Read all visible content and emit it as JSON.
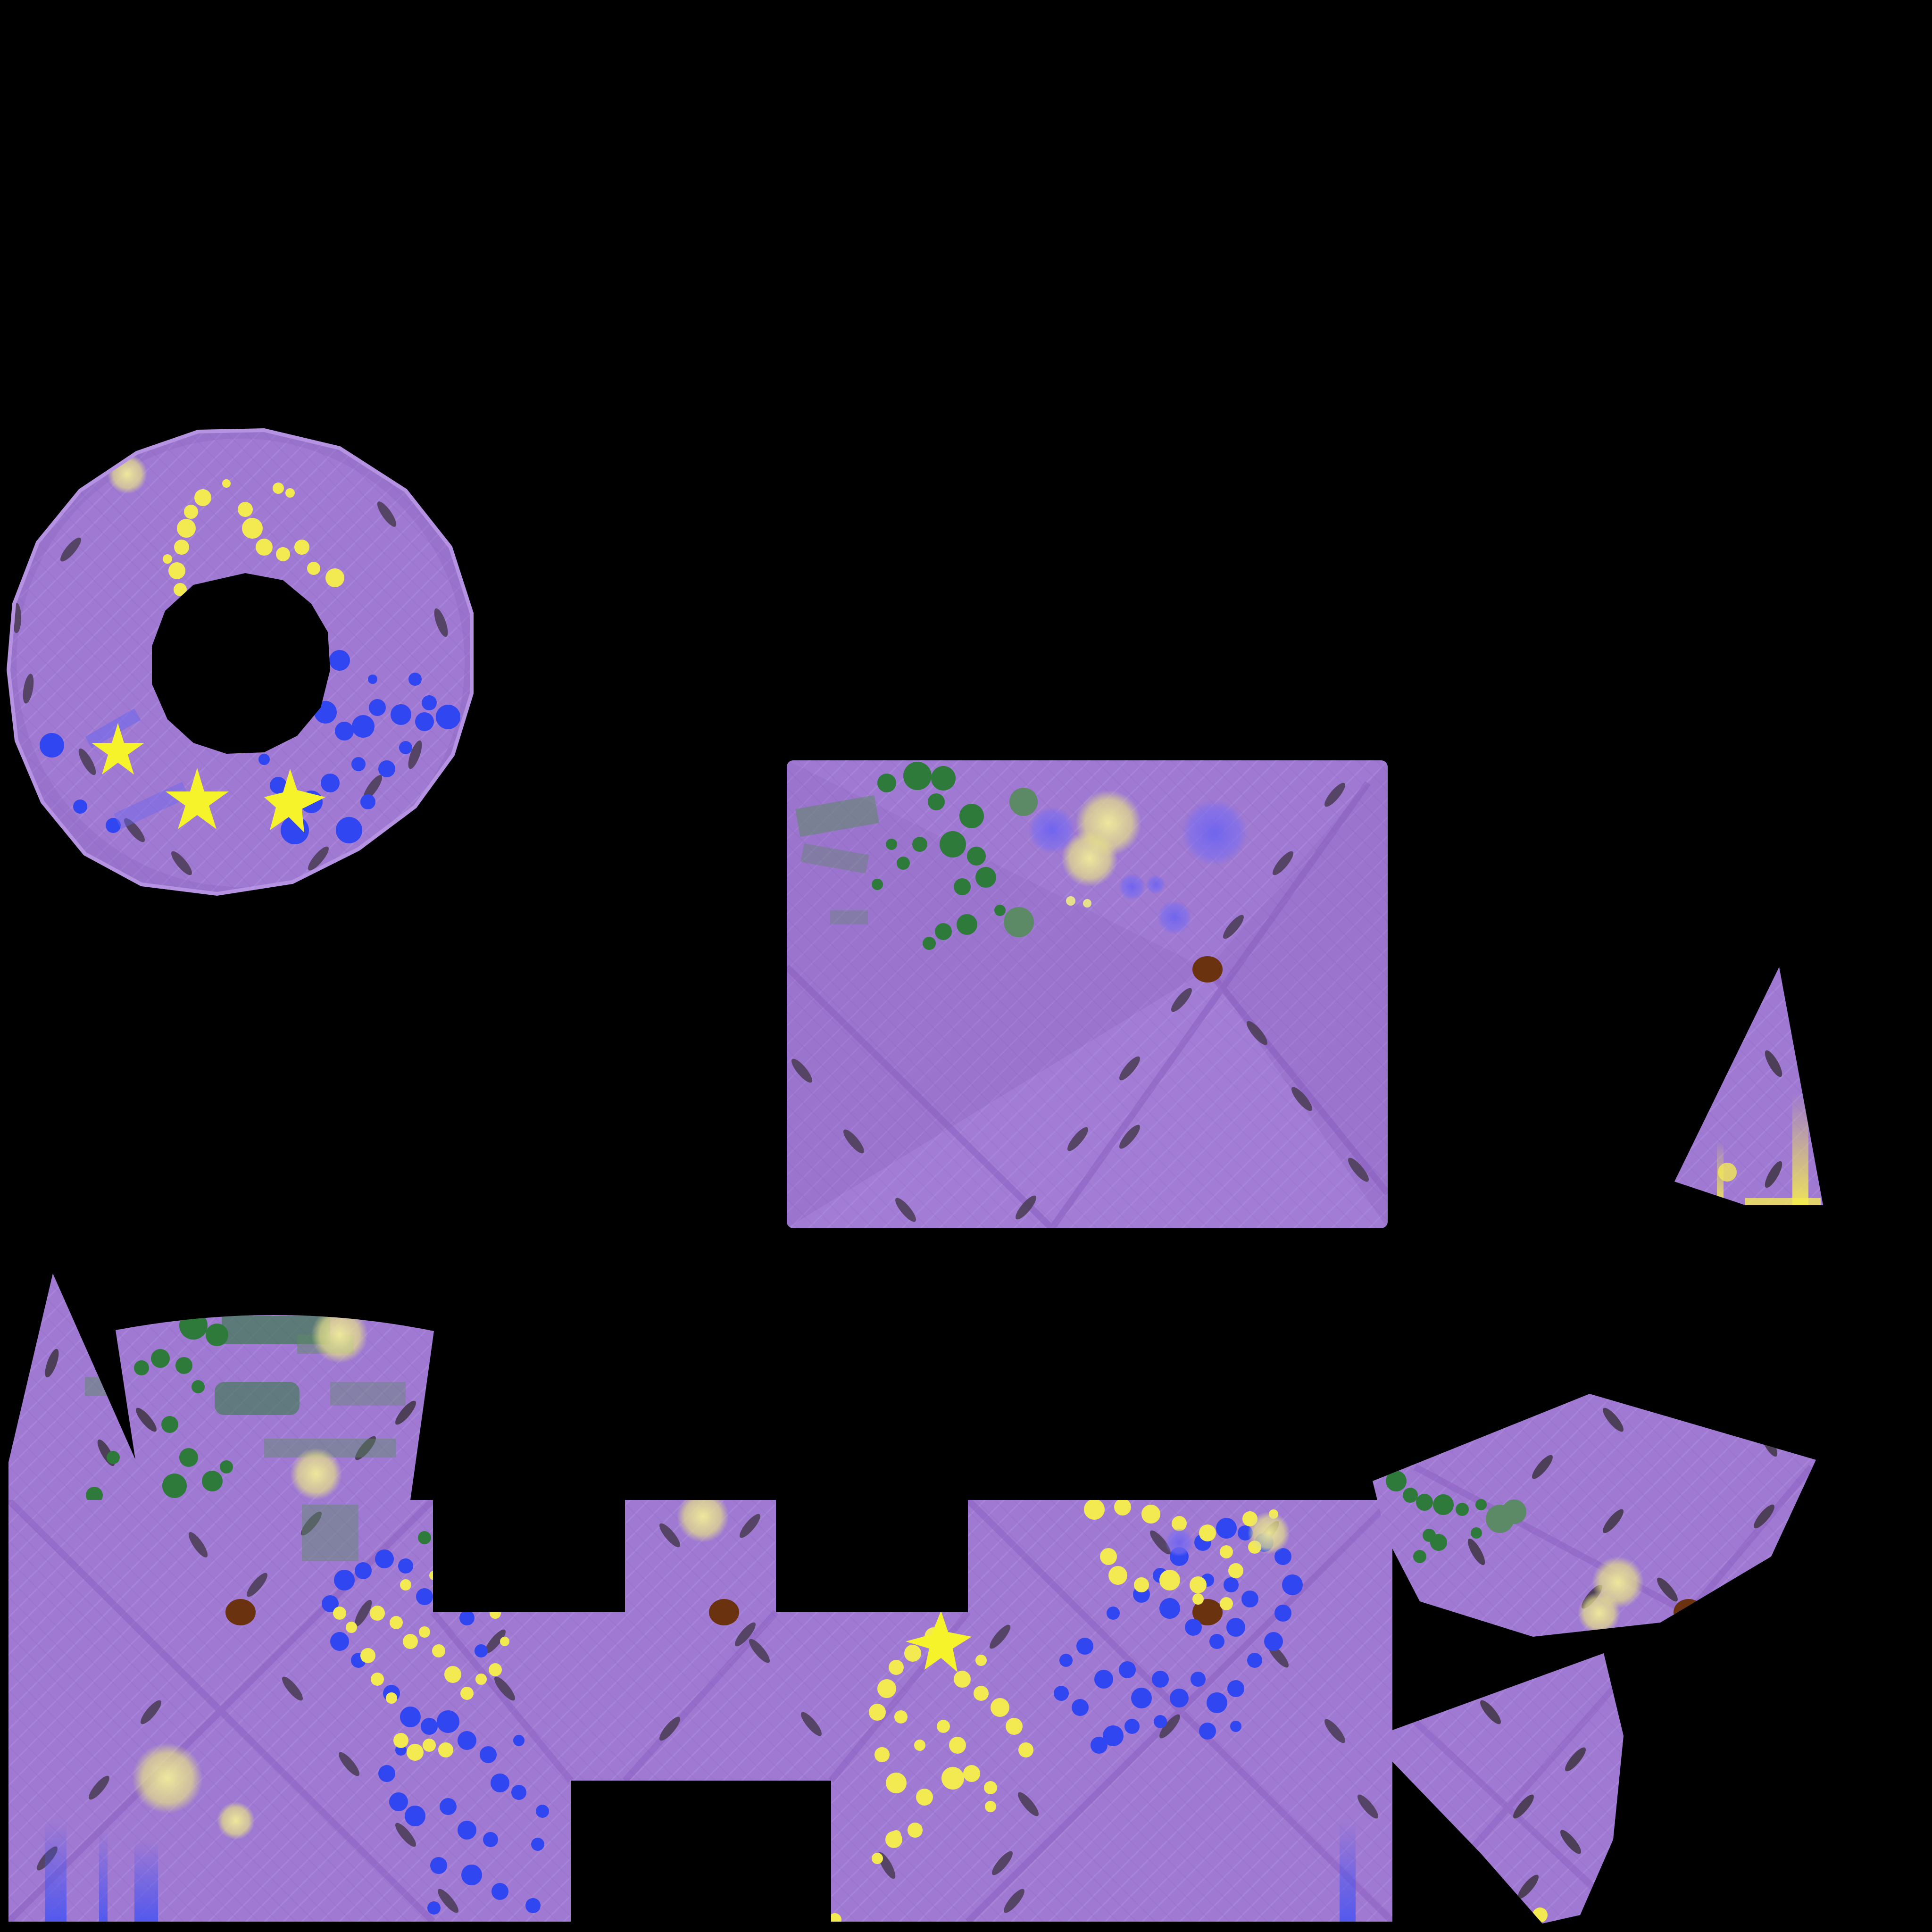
{
  "texture": {
    "background_color": "#000000",
    "base_fill_color": "#a07ad2",
    "shade_color": "#8a63c0",
    "highlight_color": "#b18ee0",
    "stitch_color": "#4d3f58",
    "button_color": "#6b3210",
    "paint_colors": {
      "yellow": "#f3ea52",
      "pale_yellow": "#e5e08c",
      "blue": "#2f46f0",
      "pale_blue": "#6a66ee",
      "green": "#2e7a3a",
      "pale_green": "#5c8a66"
    },
    "star_color": "#f7f32a",
    "islands": [
      {
        "name": "ring-island",
        "shape": "ring"
      },
      {
        "name": "top-rect-island",
        "shape": "rectangle"
      },
      {
        "name": "small-triangle-island",
        "shape": "triangle"
      },
      {
        "name": "left-triangle-island",
        "shape": "triangle"
      },
      {
        "name": "trapezoid-island",
        "shape": "trapezoid"
      },
      {
        "name": "bottom-cross-island",
        "shape": "polygon"
      },
      {
        "name": "right-dome-island",
        "shape": "polygon"
      },
      {
        "name": "right-wedge-island",
        "shape": "polygon"
      }
    ]
  }
}
